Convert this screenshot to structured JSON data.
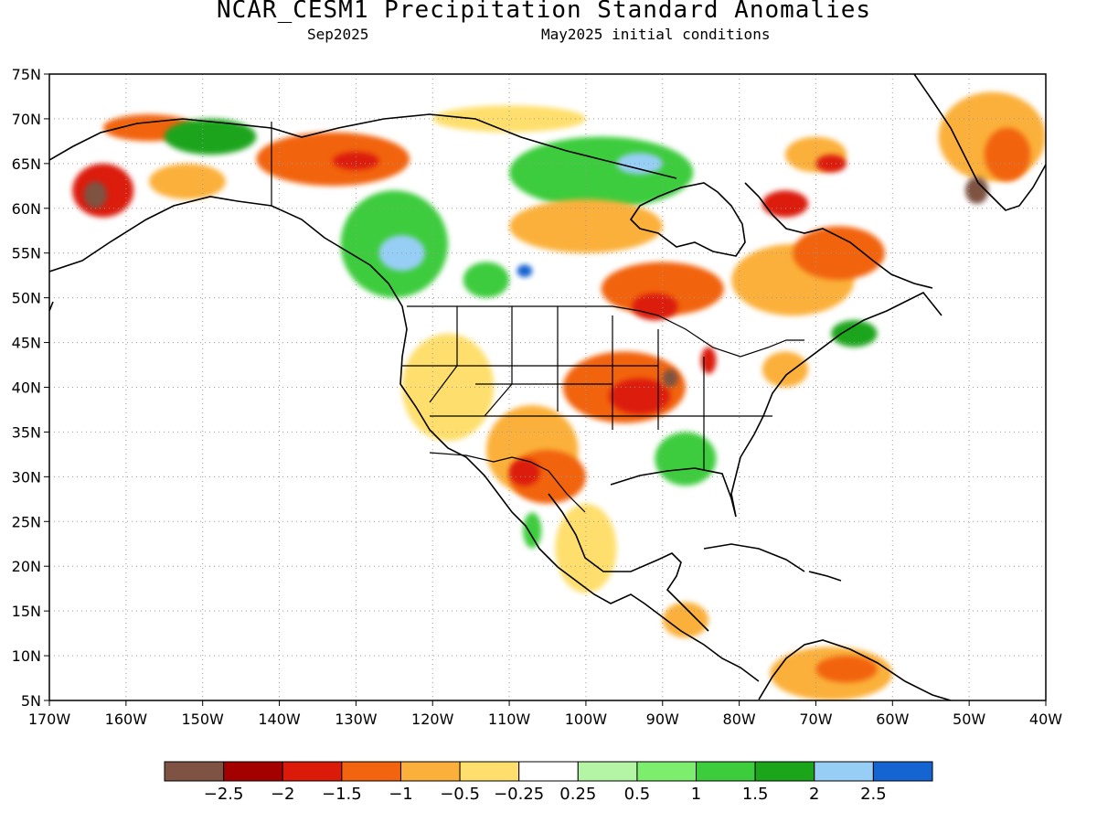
{
  "title": "NCAR_CESM1 Precipitation Standard Anomalies",
  "subtitle_left": "Sep2025",
  "subtitle_right": "May2025 initial conditions",
  "map": {
    "lon_range": [
      -170,
      -40
    ],
    "lat_range": [
      5,
      75
    ],
    "lon_ticks": [
      {
        "value": -170,
        "label": "170W"
      },
      {
        "value": -160,
        "label": "160W"
      },
      {
        "value": -150,
        "label": "150W"
      },
      {
        "value": -140,
        "label": "140W"
      },
      {
        "value": -130,
        "label": "130W"
      },
      {
        "value": -120,
        "label": "120W"
      },
      {
        "value": -110,
        "label": "110W"
      },
      {
        "value": -100,
        "label": "100W"
      },
      {
        "value": -90,
        "label": "90W"
      },
      {
        "value": -80,
        "label": "80W"
      },
      {
        "value": -70,
        "label": "70W"
      },
      {
        "value": -60,
        "label": "60W"
      },
      {
        "value": -50,
        "label": "50W"
      },
      {
        "value": -40,
        "label": "40W"
      }
    ],
    "lat_ticks": [
      {
        "value": 75,
        "label": "75N"
      },
      {
        "value": 70,
        "label": "70N"
      },
      {
        "value": 65,
        "label": "65N"
      },
      {
        "value": 60,
        "label": "60N"
      },
      {
        "value": 55,
        "label": "55N"
      },
      {
        "value": 50,
        "label": "50N"
      },
      {
        "value": 45,
        "label": "45N"
      },
      {
        "value": 40,
        "label": "40N"
      },
      {
        "value": 35,
        "label": "35N"
      },
      {
        "value": 30,
        "label": "30N"
      },
      {
        "value": 25,
        "label": "25N"
      },
      {
        "value": 20,
        "label": "20N"
      },
      {
        "value": 15,
        "label": "15N"
      },
      {
        "value": 10,
        "label": "10N"
      },
      {
        "value": 5,
        "label": "5N"
      }
    ],
    "grid": true,
    "anomaly_regions": [
      {
        "name": "alaska-west-dry",
        "lon": -163,
        "lat": 62,
        "rlon": 4,
        "rlat": 3,
        "value": -2.0
      },
      {
        "name": "alaska-sw-core",
        "lon": -164,
        "lat": 61.5,
        "rlon": 1.5,
        "rlat": 1.5,
        "value": -3.0
      },
      {
        "name": "alaska-north-dry",
        "lon": -157,
        "lat": 69,
        "rlon": 6,
        "rlat": 1.5,
        "value": -1.5
      },
      {
        "name": "alaska-central-wet",
        "lon": -149,
        "lat": 68,
        "rlon": 6,
        "rlat": 2,
        "value": 1.5
      },
      {
        "name": "alaska-center-dry",
        "lon": -152,
        "lat": 63,
        "rlon": 5,
        "rlat": 2,
        "value": -1.0
      },
      {
        "name": "yukon-dry",
        "lon": -133,
        "lat": 65.5,
        "rlon": 10,
        "rlat": 3,
        "value": -1.5
      },
      {
        "name": "yukon-core",
        "lon": -130,
        "lat": 65.3,
        "rlon": 3,
        "rlat": 1,
        "value": -2.0
      },
      {
        "name": "bc-wet",
        "lon": -125,
        "lat": 56,
        "rlon": 7,
        "rlat": 6,
        "value": 1.0
      },
      {
        "name": "bc-wet-core",
        "lon": -124,
        "lat": 55,
        "rlon": 3,
        "rlat": 2,
        "value": 2.0
      },
      {
        "name": "alberta-wet",
        "lon": -113,
        "lat": 52,
        "rlon": 3,
        "rlat": 2,
        "value": 1.0
      },
      {
        "name": "alberta-wet-core",
        "lon": -108,
        "lat": 53,
        "rlon": 1,
        "rlat": 0.7,
        "value": 2.5
      },
      {
        "name": "nwt-wet",
        "lon": -98,
        "lat": 64,
        "rlon": 12,
        "rlat": 4,
        "value": 1.0
      },
      {
        "name": "nunavut-wet-core",
        "lon": -93,
        "lat": 65,
        "rlon": 3,
        "rlat": 1.2,
        "value": 2.0
      },
      {
        "name": "sask-dry",
        "lon": -100,
        "lat": 58,
        "rlon": 10,
        "rlat": 3,
        "value": -1.0
      },
      {
        "name": "ontario-dry",
        "lon": -90,
        "lat": 51,
        "rlon": 8,
        "rlat": 3,
        "value": -1.5
      },
      {
        "name": "ontario-core",
        "lon": -91,
        "lat": 49,
        "rlon": 3,
        "rlat": 1.5,
        "value": -2.0
      },
      {
        "name": "quebec-dry",
        "lon": -73,
        "lat": 52,
        "rlon": 8,
        "rlat": 4,
        "value": -1.0
      },
      {
        "name": "quebec-core",
        "lon": -74,
        "lat": 60.5,
        "rlon": 3,
        "rlat": 1.5,
        "value": -2.0
      },
      {
        "name": "labrador-dry",
        "lon": -67,
        "lat": 55,
        "rlon": 6,
        "rlat": 3,
        "value": -1.5
      },
      {
        "name": "west-us-dry",
        "lon": -118,
        "lat": 40,
        "rlon": 6,
        "rlat": 6,
        "value": -0.5
      },
      {
        "name": "sw-us-dry",
        "lon": -107,
        "lat": 33,
        "rlon": 6,
        "rlat": 5,
        "value": -1.0
      },
      {
        "name": "texas-dry",
        "lon": -105,
        "lat": 30,
        "rlon": 5,
        "rlat": 3,
        "value": -1.5
      },
      {
        "name": "texas-core",
        "lon": -108,
        "lat": 30.5,
        "rlon": 2,
        "rlat": 1.5,
        "value": -2.0
      },
      {
        "name": "midwest-dry",
        "lon": -95,
        "lat": 40,
        "rlon": 8,
        "rlat": 4,
        "value": -1.5
      },
      {
        "name": "midwest-core",
        "lon": -93,
        "lat": 39,
        "rlon": 4,
        "rlat": 2,
        "value": -2.0
      },
      {
        "name": "great-lakes-core",
        "lon": -89,
        "lat": 41,
        "rlon": 1,
        "rlat": 1,
        "value": -3.0
      },
      {
        "name": "southeast-wet",
        "lon": -87,
        "lat": 32,
        "rlon": 4,
        "rlat": 3,
        "value": 1.0
      },
      {
        "name": "mexico-dry",
        "lon": -100,
        "lat": 22,
        "rlon": 4,
        "rlat": 5,
        "value": -0.5
      },
      {
        "name": "mexico-wet",
        "lon": -107,
        "lat": 24,
        "rlon": 1.2,
        "rlat": 2,
        "value": 1.0
      },
      {
        "name": "central-america-dry",
        "lon": -87,
        "lat": 14,
        "rlon": 3,
        "rlat": 2,
        "value": -1.0
      },
      {
        "name": "south-america-dry",
        "lon": -68,
        "lat": 8,
        "rlon": 8,
        "rlat": 3,
        "value": -1.0
      },
      {
        "name": "venezuela-core",
        "lon": -66,
        "lat": 8.5,
        "rlon": 4,
        "rlat": 1.5,
        "value": -1.5
      },
      {
        "name": "greenland-dry",
        "lon": -47,
        "lat": 68,
        "rlon": 7,
        "rlat": 5,
        "value": -1.0
      },
      {
        "name": "greenland-core",
        "lon": -45,
        "lat": 66,
        "rlon": 3,
        "rlat": 3,
        "value": -1.5
      },
      {
        "name": "greenland-brown",
        "lon": -49,
        "lat": 62,
        "rlon": 1.5,
        "rlat": 1.5,
        "value": -3.0
      },
      {
        "name": "baffin-dry",
        "lon": -70,
        "lat": 66,
        "rlon": 4,
        "rlat": 2,
        "value": -1.0
      },
      {
        "name": "baffin-core",
        "lon": -68,
        "lat": 65,
        "rlon": 2,
        "rlat": 1,
        "value": -2.0
      },
      {
        "name": "arctic-islands-dry",
        "lon": -110,
        "lat": 70,
        "rlon": 10,
        "rlat": 1.5,
        "value": -0.5
      },
      {
        "name": "maritimes-wet",
        "lon": -65,
        "lat": 46,
        "rlon": 3,
        "rlat": 1.5,
        "value": 1.5
      },
      {
        "name": "new-england-dry",
        "lon": -74,
        "lat": 42,
        "rlon": 3,
        "rlat": 2,
        "value": -1.0
      },
      {
        "name": "michigan-core",
        "lon": -84,
        "lat": 43,
        "rlon": 1,
        "rlat": 1.5,
        "value": -2.0
      }
    ]
  },
  "colorbar": {
    "colors": [
      "#7e5343",
      "#a50000",
      "#dc1a0a",
      "#f2640f",
      "#fbb03b",
      "#fedf6d",
      "#ffffff",
      "#b4f5a5",
      "#7ded6e",
      "#3ccc3c",
      "#1aa51a",
      "#97cef5",
      "#1464d2"
    ],
    "labels": [
      "−2.5",
      "−2",
      "−1.5",
      "−1",
      "−0.5",
      "−0.25",
      "0.25",
      "0.5",
      "1",
      "1.5",
      "2",
      "2.5"
    ]
  }
}
